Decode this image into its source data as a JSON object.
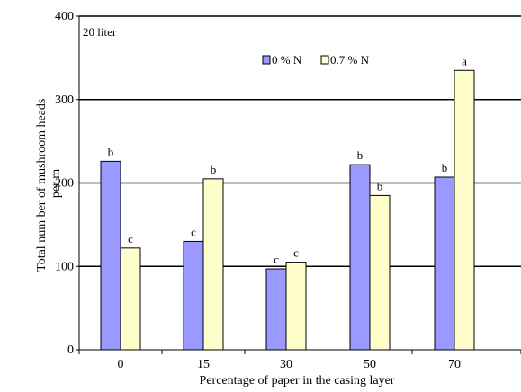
{
  "chart_data": {
    "type": "bar",
    "annotation": "20 liter",
    "xlabel": "Percentage of paper in the casing layer",
    "ylabel_lines": [
      "Total num ber of mushroom heads",
      "per m"
    ],
    "categories": [
      "0",
      "15",
      "30",
      "50",
      "70"
    ],
    "ylim": [
      0,
      400
    ],
    "yticks": [
      0,
      100,
      200,
      300,
      400
    ],
    "grid": true,
    "legend_position": "top",
    "series": [
      {
        "name": "0 % N",
        "color": "#9999ff",
        "values": [
          226,
          130,
          97,
          222,
          207
        ],
        "significance": [
          "b",
          "c",
          "c",
          "b",
          "b"
        ]
      },
      {
        "name": "0.7 % N",
        "color": "#ffffcc",
        "values": [
          122,
          205,
          105,
          185,
          335
        ],
        "significance": [
          "c",
          "b",
          "c",
          "b",
          "a"
        ]
      }
    ]
  }
}
